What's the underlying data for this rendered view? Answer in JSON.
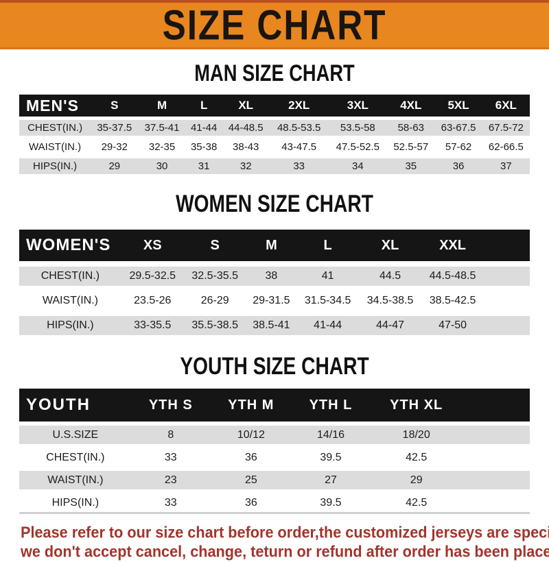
{
  "banner": {
    "title": "SIZE CHART",
    "bg_color": "#E8861F",
    "text_color": "#181512"
  },
  "chart_data": [
    {
      "type": "table",
      "id": "men",
      "title": "MAN SIZE CHART",
      "corner_label": "MEN'S",
      "columns": [
        "S",
        "M",
        "L",
        "XL",
        "2XL",
        "3XL",
        "4XL",
        "5XL",
        "6XL"
      ],
      "rows": [
        {
          "label": "CHEST(IN.)",
          "values": [
            "35-37.5",
            "37.5-41",
            "41-44",
            "44-48.5",
            "48.5-53.5",
            "53.5-58",
            "58-63",
            "63-67.5",
            "67.5-72"
          ]
        },
        {
          "label": "WAIST(IN.)",
          "values": [
            "29-32",
            "32-35",
            "35-38",
            "38-43",
            "43-47.5",
            "47.5-52.5",
            "52.5-57",
            "57-62",
            "62-66.5"
          ]
        },
        {
          "label": "HIPS(IN.)",
          "values": [
            "29",
            "30",
            "31",
            "32",
            "33",
            "34",
            "35",
            "36",
            "37"
          ]
        }
      ],
      "trailing_blank": false,
      "header_bg": "#151515",
      "shade_color": "#DCDCDC"
    },
    {
      "type": "table",
      "id": "women",
      "title": "WOMEN SIZE CHART",
      "corner_label": "WOMEN'S",
      "columns": [
        "XS",
        "S",
        "M",
        "L",
        "XL",
        "XXL"
      ],
      "rows": [
        {
          "label": "CHEST(IN.)",
          "values": [
            "29.5-32.5",
            "32.5-35.5",
            "38",
            "41",
            "44.5",
            "44.5-48.5"
          ]
        },
        {
          "label": "WAIST(IN.)",
          "values": [
            "23.5-26",
            "26-29",
            "29-31.5",
            "31.5-34.5",
            "34.5-38.5",
            "38.5-42.5"
          ]
        },
        {
          "label": "HIPS(IN.)",
          "values": [
            "33-35.5",
            "35.5-38.5",
            "38.5-41",
            "41-44",
            "44-47",
            "47-50"
          ]
        }
      ],
      "trailing_blank": true,
      "header_bg": "#151515",
      "shade_color": "#DCDCDC"
    },
    {
      "type": "table",
      "id": "youth",
      "title": "YOUTH SIZE CHART",
      "corner_label": "YOUTH",
      "columns": [
        "YTH S",
        "YTH M",
        "YTH L",
        "YTH XL"
      ],
      "rows": [
        {
          "label": "U.S.SIZE",
          "values": [
            "8",
            "10/12",
            "14/16",
            "18/20"
          ]
        },
        {
          "label": "CHEST(IN.)",
          "values": [
            "33",
            "36",
            "39.5",
            "42.5"
          ]
        },
        {
          "label": "WAIST(IN.)",
          "values": [
            "23",
            "25",
            "27",
            "29"
          ]
        },
        {
          "label": "HIPS(IN.)",
          "values": [
            "33",
            "36",
            "39.5",
            "42.5"
          ]
        }
      ],
      "trailing_blank": true,
      "header_bg": "#151515",
      "shade_color": "#DCDCDC"
    }
  ],
  "footer": {
    "lines": [
      "Please refer to our size chart before order,the customized jerseys are special products,",
      "we don't accept cancel, change, teturn or refund after order has been placed!"
    ],
    "color": "#A2342C"
  }
}
